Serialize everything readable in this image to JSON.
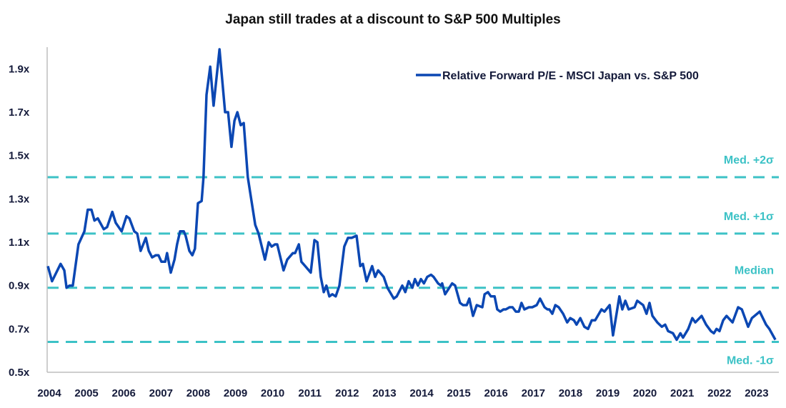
{
  "chart_data": {
    "type": "line",
    "title": "Japan still trades at a discount to S&P 500 Multiples",
    "xlabel": "",
    "ylabel": "",
    "xlim": [
      2004,
      2024
    ],
    "ylim": [
      0.5,
      2.0
    ],
    "x_ticks": [
      "2004",
      "2005",
      "2006",
      "2007",
      "2008",
      "2009",
      "2010",
      "2011",
      "2012",
      "2013",
      "2014",
      "2015",
      "2016",
      "2017",
      "2018",
      "2019",
      "2020",
      "2021",
      "2022",
      "2023"
    ],
    "y_ticks": [
      {
        "value": 0.5,
        "label": "0.5x"
      },
      {
        "value": 0.7,
        "label": "0.7x"
      },
      {
        "value": 0.9,
        "label": "0.9x"
      },
      {
        "value": 1.1,
        "label": "1.1x"
      },
      {
        "value": 1.3,
        "label": "1.3x"
      },
      {
        "value": 1.5,
        "label": "1.5x"
      },
      {
        "value": 1.7,
        "label": "1.7x"
      },
      {
        "value": 1.9,
        "label": "1.9x"
      }
    ],
    "grid": false,
    "legend": {
      "position": "top-right"
    },
    "colors": {
      "series": "#0b47b3",
      "reference": "#3cc2c6",
      "text": "#141a3a"
    },
    "reference_lines": [
      {
        "name": "Med. +2σ",
        "value": 1.4
      },
      {
        "name": "Med. +1σ",
        "value": 1.14
      },
      {
        "name": "Median",
        "value": 0.89
      },
      {
        "name": "Med. -1σ",
        "value": 0.64
      }
    ],
    "series": [
      {
        "name": "Relative Forward P/E - MSCI Japan vs. S&P 500",
        "x": [
          2004.02,
          2004.13,
          2004.36,
          2004.46,
          2004.52,
          2004.6,
          2004.69,
          2004.84,
          2005.0,
          2005.09,
          2005.19,
          2005.27,
          2005.36,
          2005.52,
          2005.61,
          2005.75,
          2005.84,
          2006.0,
          2006.13,
          2006.21,
          2006.34,
          2006.42,
          2006.51,
          2006.65,
          2006.73,
          2006.82,
          2006.92,
          2006.99,
          2007.07,
          2007.17,
          2007.22,
          2007.32,
          2007.42,
          2007.49,
          2007.57,
          2007.67,
          2007.72,
          2007.82,
          2007.9,
          2007.97,
          2008.05,
          2008.15,
          2008.2,
          2008.28,
          2008.38,
          2008.47,
          2008.63,
          2008.78,
          2008.86,
          2008.95,
          2009.03,
          2009.11,
          2009.2,
          2009.28,
          2009.39,
          2009.49,
          2009.59,
          2009.68,
          2009.85,
          2009.95,
          2010.03,
          2010.12,
          2010.18,
          2010.35,
          2010.45,
          2010.6,
          2010.66,
          2010.76,
          2010.83,
          2010.93,
          2011.08,
          2011.18,
          2011.26,
          2011.35,
          2011.43,
          2011.5,
          2011.58,
          2011.66,
          2011.75,
          2011.85,
          2011.98,
          2012.08,
          2012.18,
          2012.31,
          2012.41,
          2012.48,
          2012.58,
          2012.73,
          2012.81,
          2012.89,
          2013.04,
          2013.14,
          2013.31,
          2013.39,
          2013.54,
          2013.62,
          2013.71,
          2013.81,
          2013.88,
          2013.96,
          2014.04,
          2014.12,
          2014.21,
          2014.31,
          2014.38,
          2014.5,
          2014.58,
          2014.61,
          2014.69,
          2014.88,
          2014.96,
          2015.09,
          2015.17,
          2015.27,
          2015.34,
          2015.44,
          2015.54,
          2015.69,
          2015.75,
          2015.84,
          2015.92,
          2016.02,
          2016.09,
          2016.17,
          2016.26,
          2016.32,
          2016.42,
          2016.5,
          2016.59,
          2016.67,
          2016.74,
          2016.82,
          2016.94,
          2017.03,
          2017.15,
          2017.24,
          2017.36,
          2017.44,
          2017.49,
          2017.57,
          2017.65,
          2017.74,
          2017.86,
          2017.97,
          2018.05,
          2018.15,
          2018.22,
          2018.32,
          2018.43,
          2018.53,
          2018.63,
          2018.72,
          2018.89,
          2018.97,
          2019.11,
          2019.2,
          2019.37,
          2019.45,
          2019.53,
          2019.62,
          2019.78,
          2019.85,
          2020.01,
          2020.1,
          2020.18,
          2020.26,
          2020.39,
          2020.51,
          2020.6,
          2020.68,
          2020.81,
          2020.91,
          2021.01,
          2021.08,
          2021.22,
          2021.33,
          2021.41,
          2021.58,
          2021.7,
          2021.83,
          2021.91,
          2021.98,
          2022.06,
          2022.16,
          2022.25,
          2022.41,
          2022.56,
          2022.66,
          2022.83,
          2022.93,
          2023.14,
          2023.31,
          2023.4,
          2023.56
        ],
        "values": [
          0.99,
          0.92,
          1.0,
          0.97,
          0.89,
          0.9,
          0.9,
          1.09,
          1.15,
          1.25,
          1.25,
          1.2,
          1.21,
          1.16,
          1.17,
          1.24,
          1.19,
          1.15,
          1.22,
          1.21,
          1.15,
          1.14,
          1.06,
          1.12,
          1.06,
          1.03,
          1.04,
          1.04,
          1.01,
          1.01,
          1.05,
          0.96,
          1.02,
          1.09,
          1.15,
          1.15,
          1.13,
          1.06,
          1.04,
          1.07,
          1.28,
          1.29,
          1.4,
          1.78,
          1.91,
          1.73,
          1.99,
          1.7,
          1.7,
          1.54,
          1.66,
          1.7,
          1.64,
          1.65,
          1.4,
          1.29,
          1.18,
          1.14,
          1.02,
          1.1,
          1.08,
          1.09,
          1.09,
          0.97,
          1.02,
          1.05,
          1.05,
          1.09,
          1.01,
          0.99,
          0.96,
          1.11,
          1.1,
          0.94,
          0.87,
          0.9,
          0.85,
          0.86,
          0.85,
          0.9,
          1.08,
          1.12,
          1.12,
          1.13,
          0.99,
          1.0,
          0.92,
          0.99,
          0.94,
          0.97,
          0.94,
          0.89,
          0.84,
          0.85,
          0.9,
          0.87,
          0.92,
          0.89,
          0.93,
          0.9,
          0.93,
          0.91,
          0.94,
          0.95,
          0.94,
          0.91,
          0.9,
          0.91,
          0.86,
          0.91,
          0.9,
          0.82,
          0.81,
          0.81,
          0.84,
          0.76,
          0.81,
          0.8,
          0.86,
          0.87,
          0.85,
          0.85,
          0.79,
          0.78,
          0.79,
          0.79,
          0.8,
          0.8,
          0.78,
          0.78,
          0.82,
          0.79,
          0.8,
          0.8,
          0.81,
          0.84,
          0.8,
          0.79,
          0.79,
          0.77,
          0.81,
          0.8,
          0.77,
          0.73,
          0.75,
          0.74,
          0.72,
          0.75,
          0.71,
          0.7,
          0.74,
          0.74,
          0.79,
          0.78,
          0.81,
          0.67,
          0.85,
          0.79,
          0.83,
          0.79,
          0.8,
          0.83,
          0.81,
          0.77,
          0.82,
          0.76,
          0.73,
          0.71,
          0.72,
          0.69,
          0.68,
          0.65,
          0.68,
          0.66,
          0.7,
          0.75,
          0.73,
          0.76,
          0.72,
          0.69,
          0.68,
          0.7,
          0.69,
          0.74,
          0.76,
          0.73,
          0.8,
          0.79,
          0.71,
          0.75,
          0.78,
          0.72,
          0.7,
          0.65
        ]
      }
    ]
  }
}
